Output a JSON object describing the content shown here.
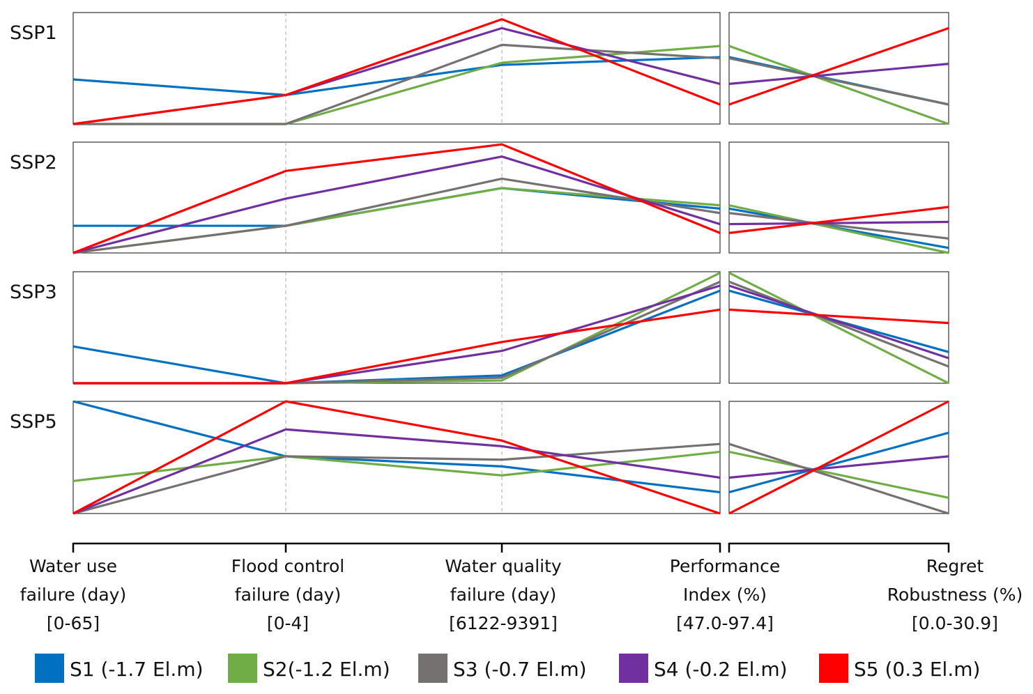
{
  "chart_data": {
    "type": "line",
    "subtype": "parallel-coordinates",
    "value_scale": "normalized 0-1 within each axis range (0 = axis minimum, 1 = axis maximum)",
    "axes": [
      {
        "label": [
          "Water use",
          "failure (day)",
          "[0-65]"
        ],
        "range": [
          0,
          65
        ]
      },
      {
        "label": [
          "Flood control",
          "failure (day)",
          "[0-4]"
        ],
        "range": [
          0,
          4
        ]
      },
      {
        "label": [
          "Water quality",
          "failure (day)",
          "[6122-9391]"
        ],
        "range": [
          6122,
          9391
        ]
      },
      {
        "label": [
          "Performance",
          "Index (%)",
          "[47.0-97.4]"
        ],
        "range": [
          47.0,
          97.4
        ]
      },
      {
        "label": [
          "Regret",
          "Robustness (%)",
          "[0.0-30.9]"
        ],
        "range": [
          0.0,
          30.9
        ]
      }
    ],
    "series": [
      {
        "name": "S1 (-1.7 El.m)",
        "color": "#0070C0"
      },
      {
        "name": "S2(-1.2 El.m)",
        "color": "#70AD47"
      },
      {
        "name": "S3 (-0.7 El.m)",
        "color": "#767171"
      },
      {
        "name": "S4 (-0.2 El.m)",
        "color": "#7030A0"
      },
      {
        "name": "S5 (0.3 El.m)",
        "color": "#FF0000"
      }
    ],
    "panels": [
      {
        "title": "SSP1",
        "values": [
          [
            0.4,
            0.26,
            0.53,
            0.6,
            0.175
          ],
          [
            0,
            0,
            0.55,
            0.7,
            0
          ],
          [
            0,
            0,
            0.71,
            0.59,
            0.175
          ],
          [
            0,
            0.26,
            0.86,
            0.36,
            0.54
          ],
          [
            0,
            0.26,
            0.94,
            0.175,
            0.86
          ]
        ]
      },
      {
        "title": "SSP2",
        "values": [
          [
            0.245,
            0.245,
            0.585,
            0.4,
            0.045
          ],
          [
            0,
            0.245,
            0.585,
            0.43,
            0
          ],
          [
            0,
            0.245,
            0.67,
            0.36,
            0.13
          ],
          [
            0,
            0.49,
            0.87,
            0.26,
            0.28
          ],
          [
            0,
            0.74,
            0.98,
            0.18,
            0.415
          ]
        ]
      },
      {
        "title": "SSP3",
        "values": [
          [
            0.33,
            0,
            0.07,
            0.83,
            0.28
          ],
          [
            0,
            0,
            0.025,
            0.99,
            0
          ],
          [
            0,
            0,
            0.05,
            0.91,
            0.15
          ],
          [
            0,
            0,
            0.29,
            0.875,
            0.225
          ],
          [
            0,
            0,
            0.37,
            0.66,
            0.54
          ]
        ]
      },
      {
        "title": "SSP5",
        "values": [
          [
            1.0,
            0.51,
            0.42,
            0.19,
            0.72
          ],
          [
            0.29,
            0.51,
            0.34,
            0.55,
            0.14
          ],
          [
            0,
            0.51,
            0.48,
            0.62,
            0
          ],
          [
            0,
            0.75,
            0.6,
            0.32,
            0.51
          ],
          [
            0,
            1.0,
            0.65,
            0,
            1.0
          ]
        ]
      }
    ]
  }
}
